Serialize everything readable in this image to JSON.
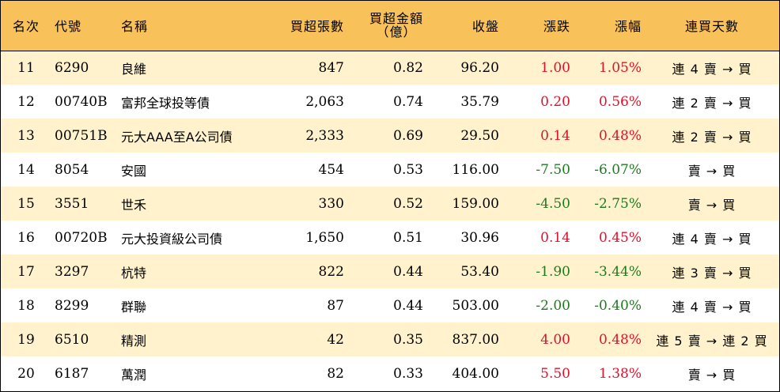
{
  "header": {
    "rank": "名次",
    "code": "代號",
    "name": "名稱",
    "shares": "買超張數",
    "amount_line1": "買超金額",
    "amount_line2": "（億）",
    "close": "收盤",
    "change": "漲跌",
    "pct": "漲幅",
    "streak": "連買天數"
  },
  "rows": [
    {
      "rank": "11",
      "code": "6290",
      "name": "良維",
      "shares": "847",
      "amount": "0.82",
      "close": "96.20",
      "change": "1.00",
      "pct": "1.05%",
      "dir": "up",
      "streak": "連 4 賣 → 買"
    },
    {
      "rank": "12",
      "code": "00740B",
      "name": "富邦全球投等債",
      "shares": "2,063",
      "amount": "0.74",
      "close": "35.79",
      "change": "0.20",
      "pct": "0.56%",
      "dir": "up",
      "streak": "連 2 賣 → 買"
    },
    {
      "rank": "13",
      "code": "00751B",
      "name": "元大AAA至A公司債",
      "shares": "2,333",
      "amount": "0.69",
      "close": "29.50",
      "change": "0.14",
      "pct": "0.48%",
      "dir": "up",
      "streak": "連 2 賣 → 買"
    },
    {
      "rank": "14",
      "code": "8054",
      "name": "安國",
      "shares": "454",
      "amount": "0.53",
      "close": "116.00",
      "change": "-7.50",
      "pct": "-6.07%",
      "dir": "down",
      "streak": "賣 → 買"
    },
    {
      "rank": "15",
      "code": "3551",
      "name": "世禾",
      "shares": "330",
      "amount": "0.52",
      "close": "159.00",
      "change": "-4.50",
      "pct": "-2.75%",
      "dir": "down",
      "streak": "賣 → 買"
    },
    {
      "rank": "16",
      "code": "00720B",
      "name": "元大投資級公司債",
      "shares": "1,650",
      "amount": "0.51",
      "close": "30.96",
      "change": "0.14",
      "pct": "0.45%",
      "dir": "up",
      "streak": "連 4 賣 → 買"
    },
    {
      "rank": "17",
      "code": "3297",
      "name": "杭特",
      "shares": "822",
      "amount": "0.44",
      "close": "53.40",
      "change": "-1.90",
      "pct": "-3.44%",
      "dir": "down",
      "streak": "連 3 賣 → 買"
    },
    {
      "rank": "18",
      "code": "8299",
      "name": "群聯",
      "shares": "87",
      "amount": "0.44",
      "close": "503.00",
      "change": "-2.00",
      "pct": "-0.40%",
      "dir": "down",
      "streak": "連 4 賣 → 買"
    },
    {
      "rank": "19",
      "code": "6510",
      "name": "精測",
      "shares": "42",
      "amount": "0.35",
      "close": "837.00",
      "change": "4.00",
      "pct": "0.48%",
      "dir": "up",
      "streak": "連 5 賣 → 連 2 買"
    },
    {
      "rank": "20",
      "code": "6187",
      "name": "萬潤",
      "shares": "82",
      "amount": "0.33",
      "close": "404.00",
      "change": "5.50",
      "pct": "1.38%",
      "dir": "up",
      "streak": "賣 → 買"
    }
  ],
  "colors": {
    "up": "#e0112a",
    "down": "#1f7a1f",
    "header_bg": "#f8c15a",
    "stripe_bg": "#fff2cd"
  }
}
